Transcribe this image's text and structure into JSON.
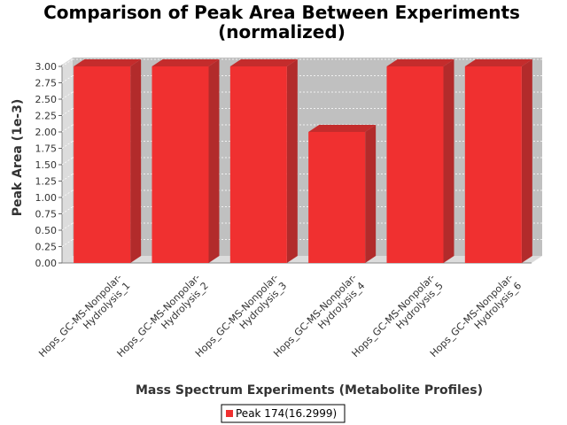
{
  "chart_data": {
    "type": "bar",
    "title_lines": [
      "Comparison of Peak Area Between Experiments",
      "(normalized)"
    ],
    "xlabel": "Mass Spectrum Experiments (Metabolite Profiles)",
    "ylabel": "Peak Area (1e-3)",
    "categories": [
      [
        "Hops_GC-MS-Nonpolar-",
        "Hydrolysis_1"
      ],
      [
        "Hops_GC-MS-Nonpolar-",
        "Hydrolysis_2"
      ],
      [
        "Hops_GC-MS-Nonpolar-",
        "Hydrolysis_3"
      ],
      [
        "Hops_GC-MS-Nonpolar-",
        "Hydrolysis_4"
      ],
      [
        "Hops_GC-MS-Nonpolar-",
        "Hydrolysis_5"
      ],
      [
        "Hops_GC-MS-Nonpolar-",
        "Hydrolysis_6"
      ]
    ],
    "series": [
      {
        "name": "Peak 174(16.2999)",
        "values": [
          3.0,
          3.0,
          3.0,
          2.0,
          3.0,
          3.0
        ]
      }
    ],
    "ylim": [
      0,
      3.0
    ],
    "yticks": [
      "0.00",
      "0.25",
      "0.50",
      "0.75",
      "1.00",
      "1.25",
      "1.50",
      "1.75",
      "2.00",
      "2.25",
      "2.50",
      "2.75",
      "3.00"
    ],
    "grid": true,
    "legend_position": "bottom-center",
    "colors": {
      "bar_front": "#f03030",
      "bar_side": "#b22b2b",
      "bar_top": "#c42c2c",
      "plot_bg": "#c0c0c0",
      "wall": "#dcdcdc",
      "gridline": "#ffffff"
    }
  }
}
